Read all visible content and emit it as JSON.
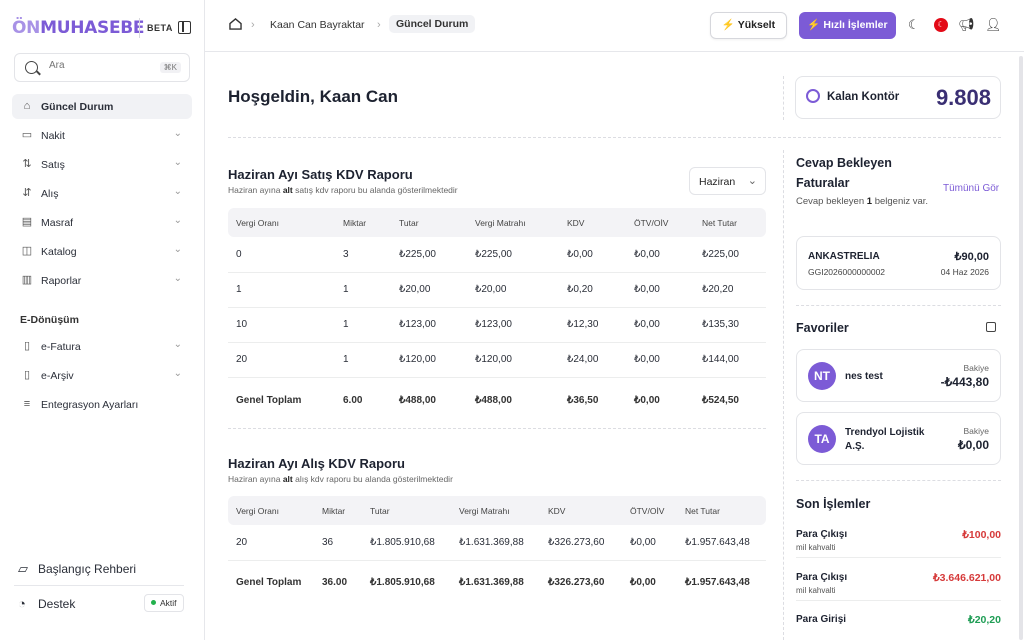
{
  "app": {
    "logo_a": "ÖN",
    "logo_b": "MUHASEBE",
    "badge": "BETA"
  },
  "search": {
    "placeholder": "Ara",
    "shortcut": "⌘K"
  },
  "sidebar": {
    "items": [
      {
        "label": "Güncel Durum",
        "icon": "home-icon",
        "active": true
      },
      {
        "label": "Nakit",
        "icon": "wallet-icon"
      },
      {
        "label": "Satış",
        "icon": "sales-arrows-icon"
      },
      {
        "label": "Alış",
        "icon": "purchase-arrows-icon"
      },
      {
        "label": "Masraf",
        "icon": "expense-icon"
      },
      {
        "label": "Katalog",
        "icon": "box-icon"
      },
      {
        "label": "Raporlar",
        "icon": "chart-icon"
      }
    ],
    "section": "E-Dönüşüm",
    "eitems": [
      {
        "label": "e-Fatura",
        "icon": "document-icon"
      },
      {
        "label": "e-Arşiv",
        "icon": "archive-icon"
      },
      {
        "label": "Entegrasyon Ayarları",
        "icon": "settings-icon"
      }
    ],
    "guide": "Başlangıç Rehberi",
    "support": "Destek",
    "status": "Aktif"
  },
  "breadcrumb": {
    "user": "Kaan Can Bayraktar",
    "current": "Güncel Durum"
  },
  "topbar": {
    "upgrade": "Yükselt",
    "quick": "Hızlı İşlemler"
  },
  "welcome": "Hoşgeldin, Kaan Can",
  "kontor": {
    "label": "Kalan Kontör",
    "value": "9.808"
  },
  "sales_report": {
    "title": "Haziran Ayı Satış KDV Raporu",
    "sub_a": "Haziran ayına ",
    "sub_b": "alt",
    "sub_c": " satış kdv raporu bu alanda gösterilmektedir",
    "month": "Haziran",
    "headers": [
      "Vergi Oranı",
      "Miktar",
      "Tutar",
      "Vergi Matrahı",
      "KDV",
      "ÖTV/OİV",
      "Net Tutar"
    ],
    "rows": [
      [
        "0",
        "3",
        "₺225,00",
        "₺225,00",
        "₺0,00",
        "₺0,00",
        "₺225,00"
      ],
      [
        "1",
        "1",
        "₺20,00",
        "₺20,00",
        "₺0,20",
        "₺0,00",
        "₺20,20"
      ],
      [
        "10",
        "1",
        "₺123,00",
        "₺123,00",
        "₺12,30",
        "₺0,00",
        "₺135,30"
      ],
      [
        "20",
        "1",
        "₺120,00",
        "₺120,00",
        "₺24,00",
        "₺0,00",
        "₺144,00"
      ]
    ],
    "total": [
      "Genel Toplam",
      "6.00",
      "₺488,00",
      "₺488,00",
      "₺36,50",
      "₺0,00",
      "₺524,50"
    ]
  },
  "purchase_report": {
    "title": "Haziran Ayı Alış KDV Raporu",
    "sub_a": "Haziran ayına ",
    "sub_b": "alt",
    "sub_c": " alış kdv raporu bu alanda gösterilmektedir",
    "headers": [
      "Vergi Oranı",
      "Miktar",
      "Tutar",
      "Vergi Matrahı",
      "KDV",
      "ÖTV/OİV",
      "Net Tutar"
    ],
    "rows": [
      [
        "20",
        "36",
        "₺1.805.910,68",
        "₺1.631.369,88",
        "₺326.273,60",
        "₺0,00",
        "₺1.957.643,48"
      ]
    ],
    "total": [
      "Genel Toplam",
      "36.00",
      "₺1.805.910,68",
      "₺1.631.369,88",
      "₺326.273,60",
      "₺0,00",
      "₺1.957.643,48"
    ]
  },
  "pending": {
    "title_a": "Cevap Bekleyen",
    "title_b": "Faturalar",
    "link": "Tümünü Gör",
    "text_a": "Cevap bekleyen ",
    "count": "1",
    "text_b": " belgeniz var.",
    "invoice": {
      "name": "ANKASTRELIA",
      "no": "GGI2026000000002",
      "amount": "₺90,00",
      "date": "04 Haz 2026"
    }
  },
  "favorites": {
    "title": "Favoriler",
    "items": [
      {
        "initials": "NT",
        "name_a": "nes test",
        "name_b": "",
        "bal_label": "Bakiye",
        "balance": "-₺443,80"
      },
      {
        "initials": "TA",
        "name_a": "Trendyol Lojistik",
        "name_b": "A.Ş.",
        "bal_label": "Bakiye",
        "balance": "₺0,00"
      }
    ]
  },
  "transactions": {
    "title": "Son İşlemler",
    "items": [
      {
        "label": "Para Çıkışı",
        "desc": "mil kahvalti",
        "amount": "₺100,00",
        "type": "neg"
      },
      {
        "label": "Para Çıkışı",
        "desc": "mil kahvalti",
        "amount": "₺3.646.621,00",
        "type": "neg"
      },
      {
        "label": "Para Girişi",
        "desc": "",
        "amount": "₺20,20",
        "type": "pos"
      }
    ]
  },
  "colors": {
    "accent": "#7c5bd6",
    "negative": "#d63a3a",
    "positive": "#1f9d55"
  }
}
